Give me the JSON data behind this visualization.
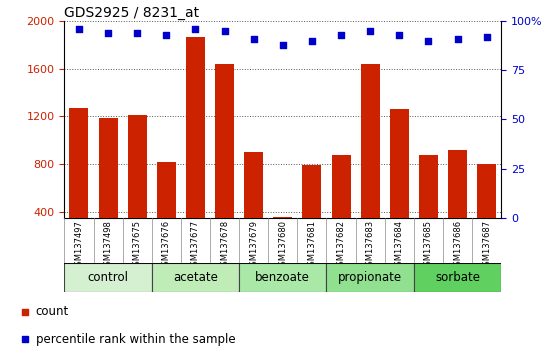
{
  "title": "GDS2925 / 8231_at",
  "samples": [
    "GSM137497",
    "GSM137498",
    "GSM137675",
    "GSM137676",
    "GSM137677",
    "GSM137678",
    "GSM137679",
    "GSM137680",
    "GSM137681",
    "GSM137682",
    "GSM137683",
    "GSM137684",
    "GSM137685",
    "GSM137686",
    "GSM137687"
  ],
  "counts": [
    1270,
    1185,
    1210,
    820,
    1870,
    1640,
    900,
    360,
    790,
    880,
    1640,
    1260,
    880,
    920,
    800
  ],
  "percentiles": [
    96,
    94,
    94,
    93,
    96,
    95,
    91,
    88,
    90,
    93,
    95,
    93,
    90,
    91,
    92
  ],
  "groups": [
    {
      "label": "control",
      "indices": [
        0,
        1,
        2
      ],
      "color": "#d4f0d0"
    },
    {
      "label": "acetate",
      "indices": [
        3,
        4,
        5
      ],
      "color": "#c0ecb8"
    },
    {
      "label": "benzoate",
      "indices": [
        6,
        7,
        8
      ],
      "color": "#aae8a8"
    },
    {
      "label": "propionate",
      "indices": [
        9,
        10,
        11
      ],
      "color": "#90e090"
    },
    {
      "label": "sorbate",
      "indices": [
        12,
        13,
        14
      ],
      "color": "#60d060"
    }
  ],
  "ylim_left": [
    350,
    2000
  ],
  "ylim_right": [
    0,
    100
  ],
  "bar_color": "#cc2200",
  "dot_color": "#0000cc",
  "grid_color": "#555555",
  "ylabel_left_color": "#cc2200",
  "ylabel_right_color": "#0000cc",
  "legend_count": "count",
  "legend_pct": "percentile rank within the sample",
  "tick_bg_color": "#d8d8d8",
  "group_border_color": "#444444"
}
